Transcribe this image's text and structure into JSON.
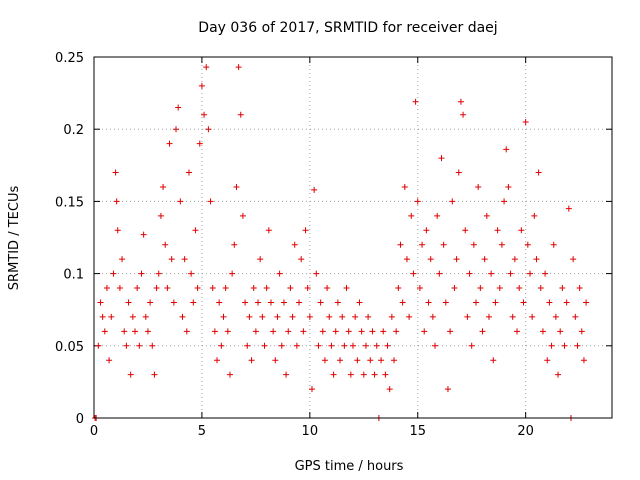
{
  "chart_data": {
    "type": "scatter",
    "title": "Day 036 of 2017, SRMTID for receiver daej",
    "xlabel": "GPS time / hours",
    "ylabel": "SRMTID / TECUs",
    "xlim": [
      0,
      24
    ],
    "ylim": [
      0,
      0.25
    ],
    "xticks": [
      0,
      5,
      10,
      15,
      20
    ],
    "yticks": [
      0,
      0.05,
      0.1,
      0.15,
      0.2,
      0.25
    ],
    "xtick_labels": [
      "0",
      "5",
      "10",
      "15",
      "20"
    ],
    "ytick_labels": [
      "0",
      "0.05",
      "0.1",
      "0.15",
      "0.2",
      "0.25"
    ],
    "grid": true,
    "marker": "+",
    "color": "#e00000",
    "series": [
      {
        "name": "SRMTID",
        "points": [
          [
            0.05,
            0.0
          ],
          [
            0.1,
            0.0
          ],
          [
            0.2,
            0.05
          ],
          [
            0.3,
            0.08
          ],
          [
            0.4,
            0.07
          ],
          [
            0.5,
            0.06
          ],
          [
            0.6,
            0.09
          ],
          [
            0.7,
            0.04
          ],
          [
            0.8,
            0.07
          ],
          [
            0.9,
            0.1
          ],
          [
            1.0,
            0.17
          ],
          [
            1.05,
            0.15
          ],
          [
            1.1,
            0.13
          ],
          [
            1.2,
            0.09
          ],
          [
            1.3,
            0.11
          ],
          [
            1.4,
            0.06
          ],
          [
            1.5,
            0.05
          ],
          [
            1.6,
            0.08
          ],
          [
            1.7,
            0.03
          ],
          [
            1.8,
            0.07
          ],
          [
            1.9,
            0.06
          ],
          [
            2.0,
            0.09
          ],
          [
            2.1,
            0.05
          ],
          [
            2.2,
            0.1
          ],
          [
            2.3,
            0.127
          ],
          [
            2.4,
            0.07
          ],
          [
            2.5,
            0.06
          ],
          [
            2.6,
            0.08
          ],
          [
            2.7,
            0.05
          ],
          [
            2.8,
            0.03
          ],
          [
            2.9,
            0.09
          ],
          [
            3.0,
            0.1
          ],
          [
            3.1,
            0.14
          ],
          [
            3.2,
            0.16
          ],
          [
            3.3,
            0.12
          ],
          [
            3.4,
            0.09
          ],
          [
            3.5,
            0.19
          ],
          [
            3.6,
            0.11
          ],
          [
            3.7,
            0.08
          ],
          [
            3.8,
            0.2
          ],
          [
            3.9,
            0.215
          ],
          [
            4.0,
            0.15
          ],
          [
            4.1,
            0.07
          ],
          [
            4.2,
            0.11
          ],
          [
            4.3,
            0.06
          ],
          [
            4.4,
            0.17
          ],
          [
            4.5,
            0.1
          ],
          [
            4.6,
            0.08
          ],
          [
            4.7,
            0.13
          ],
          [
            4.8,
            0.09
          ],
          [
            4.9,
            0.19
          ],
          [
            5.0,
            0.23
          ],
          [
            5.1,
            0.21
          ],
          [
            5.2,
            0.243
          ],
          [
            5.3,
            0.2
          ],
          [
            5.4,
            0.15
          ],
          [
            5.5,
            0.09
          ],
          [
            5.6,
            0.06
          ],
          [
            5.7,
            0.04
          ],
          [
            5.8,
            0.08
          ],
          [
            5.9,
            0.05
          ],
          [
            6.0,
            0.07
          ],
          [
            6.1,
            0.09
          ],
          [
            6.2,
            0.06
          ],
          [
            6.3,
            0.03
          ],
          [
            6.4,
            0.1
          ],
          [
            6.5,
            0.12
          ],
          [
            6.6,
            0.16
          ],
          [
            6.7,
            0.243
          ],
          [
            6.8,
            0.21
          ],
          [
            6.9,
            0.14
          ],
          [
            7.0,
            0.08
          ],
          [
            7.1,
            0.05
          ],
          [
            7.2,
            0.07
          ],
          [
            7.3,
            0.04
          ],
          [
            7.4,
            0.09
          ],
          [
            7.5,
            0.06
          ],
          [
            7.6,
            0.08
          ],
          [
            7.7,
            0.11
          ],
          [
            7.8,
            0.07
          ],
          [
            7.9,
            0.05
          ],
          [
            8.0,
            0.09
          ],
          [
            8.1,
            0.13
          ],
          [
            8.2,
            0.08
          ],
          [
            8.3,
            0.06
          ],
          [
            8.4,
            0.04
          ],
          [
            8.5,
            0.07
          ],
          [
            8.6,
            0.1
          ],
          [
            8.7,
            0.05
          ],
          [
            8.8,
            0.08
          ],
          [
            8.9,
            0.03
          ],
          [
            9.0,
            0.06
          ],
          [
            9.1,
            0.09
          ],
          [
            9.2,
            0.07
          ],
          [
            9.3,
            0.12
          ],
          [
            9.4,
            0.05
          ],
          [
            9.5,
            0.08
          ],
          [
            9.6,
            0.11
          ],
          [
            9.7,
            0.06
          ],
          [
            9.8,
            0.13
          ],
          [
            9.9,
            0.09
          ],
          [
            10.0,
            0.07
          ],
          [
            10.1,
            0.02
          ],
          [
            10.2,
            0.158
          ],
          [
            10.3,
            0.1
          ],
          [
            10.4,
            0.05
          ],
          [
            10.5,
            0.08
          ],
          [
            10.6,
            0.06
          ],
          [
            10.7,
            0.04
          ],
          [
            10.8,
            0.09
          ],
          [
            10.9,
            0.07
          ],
          [
            11.0,
            0.05
          ],
          [
            11.1,
            0.03
          ],
          [
            11.2,
            0.06
          ],
          [
            11.3,
            0.08
          ],
          [
            11.4,
            0.04
          ],
          [
            11.5,
            0.07
          ],
          [
            11.6,
            0.05
          ],
          [
            11.7,
            0.09
          ],
          [
            11.8,
            0.06
          ],
          [
            11.9,
            0.03
          ],
          [
            12.0,
            0.05
          ],
          [
            12.1,
            0.07
          ],
          [
            12.2,
            0.04
          ],
          [
            12.3,
            0.08
          ],
          [
            12.4,
            0.06
          ],
          [
            12.5,
            0.03
          ],
          [
            12.6,
            0.05
          ],
          [
            12.7,
            0.07
          ],
          [
            12.8,
            0.04
          ],
          [
            12.9,
            0.06
          ],
          [
            13.0,
            0.03
          ],
          [
            13.1,
            0.05
          ],
          [
            13.2,
            0.0
          ],
          [
            13.3,
            0.04
          ],
          [
            13.4,
            0.06
          ],
          [
            13.5,
            0.03
          ],
          [
            13.6,
            0.05
          ],
          [
            13.7,
            0.02
          ],
          [
            13.8,
            0.07
          ],
          [
            13.9,
            0.04
          ],
          [
            14.0,
            0.06
          ],
          [
            14.1,
            0.09
          ],
          [
            14.2,
            0.12
          ],
          [
            14.3,
            0.08
          ],
          [
            14.4,
            0.16
          ],
          [
            14.5,
            0.11
          ],
          [
            14.6,
            0.07
          ],
          [
            14.7,
            0.14
          ],
          [
            14.8,
            0.1
          ],
          [
            14.9,
            0.219
          ],
          [
            15.0,
            0.15
          ],
          [
            15.1,
            0.09
          ],
          [
            15.2,
            0.12
          ],
          [
            15.3,
            0.06
          ],
          [
            15.4,
            0.13
          ],
          [
            15.5,
            0.08
          ],
          [
            15.6,
            0.11
          ],
          [
            15.7,
            0.07
          ],
          [
            15.8,
            0.05
          ],
          [
            15.9,
            0.14
          ],
          [
            16.0,
            0.1
          ],
          [
            16.1,
            0.18
          ],
          [
            16.2,
            0.12
          ],
          [
            16.3,
            0.08
          ],
          [
            16.4,
            0.02
          ],
          [
            16.5,
            0.06
          ],
          [
            16.6,
            0.15
          ],
          [
            16.7,
            0.09
          ],
          [
            16.8,
            0.11
          ],
          [
            16.9,
            0.17
          ],
          [
            17.0,
            0.219
          ],
          [
            17.1,
            0.21
          ],
          [
            17.2,
            0.13
          ],
          [
            17.3,
            0.07
          ],
          [
            17.4,
            0.1
          ],
          [
            17.5,
            0.05
          ],
          [
            17.6,
            0.12
          ],
          [
            17.7,
            0.08
          ],
          [
            17.8,
            0.16
          ],
          [
            17.9,
            0.09
          ],
          [
            18.0,
            0.06
          ],
          [
            18.1,
            0.11
          ],
          [
            18.2,
            0.14
          ],
          [
            18.3,
            0.07
          ],
          [
            18.4,
            0.1
          ],
          [
            18.5,
            0.04
          ],
          [
            18.6,
            0.08
          ],
          [
            18.7,
            0.13
          ],
          [
            18.8,
            0.09
          ],
          [
            18.9,
            0.12
          ],
          [
            19.0,
            0.15
          ],
          [
            19.1,
            0.186
          ],
          [
            19.2,
            0.16
          ],
          [
            19.3,
            0.1
          ],
          [
            19.4,
            0.07
          ],
          [
            19.5,
            0.11
          ],
          [
            19.6,
            0.06
          ],
          [
            19.7,
            0.09
          ],
          [
            19.8,
            0.13
          ],
          [
            19.9,
            0.08
          ],
          [
            20.0,
            0.205
          ],
          [
            20.1,
            0.12
          ],
          [
            20.2,
            0.1
          ],
          [
            20.3,
            0.07
          ],
          [
            20.4,
            0.14
          ],
          [
            20.5,
            0.11
          ],
          [
            20.6,
            0.17
          ],
          [
            20.7,
            0.09
          ],
          [
            20.8,
            0.06
          ],
          [
            20.9,
            0.1
          ],
          [
            21.0,
            0.04
          ],
          [
            21.1,
            0.08
          ],
          [
            21.2,
            0.05
          ],
          [
            21.3,
            0.12
          ],
          [
            21.4,
            0.07
          ],
          [
            21.5,
            0.03
          ],
          [
            21.6,
            0.06
          ],
          [
            21.7,
            0.09
          ],
          [
            21.8,
            0.05
          ],
          [
            21.9,
            0.08
          ],
          [
            22.0,
            0.145
          ],
          [
            22.1,
            0.0
          ],
          [
            22.2,
            0.11
          ],
          [
            22.3,
            0.07
          ],
          [
            22.4,
            0.05
          ],
          [
            22.5,
            0.09
          ],
          [
            22.6,
            0.06
          ],
          [
            22.7,
            0.04
          ],
          [
            22.8,
            0.08
          ]
        ]
      }
    ]
  }
}
